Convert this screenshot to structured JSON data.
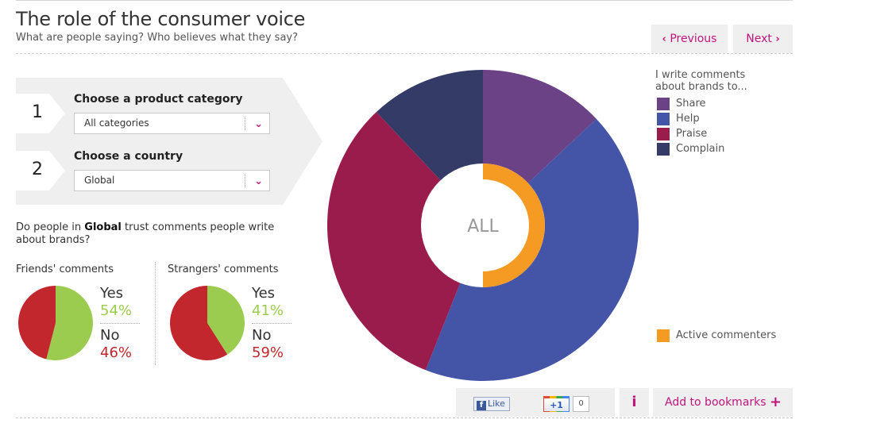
{
  "header": {
    "title": "The role of the consumer voice",
    "subtitle": "What are people saying? Who believes what they say?",
    "prev_label": "Previous",
    "next_label": "Next"
  },
  "filters": {
    "step1_number": "1",
    "step1_label": "Choose a product category",
    "step1_value": "All categories",
    "step2_number": "2",
    "step2_label": "Choose a country",
    "step2_value": "Global"
  },
  "trust": {
    "question_pre": "Do people in ",
    "question_country": "Global",
    "question_post": " trust comments people write about brands?",
    "yes_label": "Yes",
    "no_label": "No"
  },
  "legend": {
    "title": "I write comments about brands to...",
    "active_label": "Active commenters"
  },
  "footer": {
    "like_label": "Like",
    "gplus_label": "+1",
    "gplus_count": "0",
    "info_label": "i",
    "bookmark_label": "Add to bookmarks",
    "bookmark_plus": "+"
  },
  "chart_data": [
    {
      "type": "pie",
      "title": "Friends' comments",
      "slices": [
        {
          "name": "Yes",
          "value": 54,
          "display": "54%",
          "color": "#9ccc4f"
        },
        {
          "name": "No",
          "value": 46,
          "display": "46%",
          "color": "#c1272d"
        }
      ]
    },
    {
      "type": "pie",
      "title": "Strangers' comments",
      "slices": [
        {
          "name": "Yes",
          "value": 41,
          "display": "41%",
          "color": "#9ccc4f"
        },
        {
          "name": "No",
          "value": 59,
          "display": "59%",
          "color": "#c1272d"
        }
      ]
    },
    {
      "type": "pie",
      "center_label": "ALL",
      "slices": [
        {
          "name": "Share",
          "value": 13,
          "color": "#6b4286"
        },
        {
          "name": "Help",
          "value": 43,
          "color": "#4454a6"
        },
        {
          "name": "Praise",
          "value": 32,
          "color": "#9a1c4d"
        },
        {
          "name": "Complain",
          "value": 12,
          "color": "#333b66"
        }
      ],
      "inner_ring": {
        "name": "Active commenters",
        "value": 50,
        "color": "#f59a23"
      }
    }
  ]
}
